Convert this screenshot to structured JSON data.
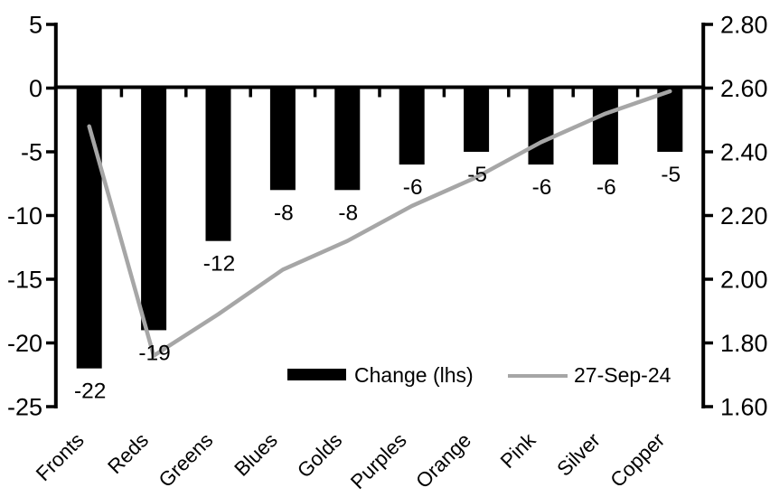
{
  "chart_data": {
    "type": "bar+line dual-axis combo",
    "categories": [
      "Fronts",
      "Reds",
      "Greens",
      "Blues",
      "Golds",
      "Purples",
      "Orange",
      "Pink",
      "Silver",
      "Copper"
    ],
    "series": [
      {
        "name": "Change (lhs)",
        "type": "bar",
        "axis": "left",
        "color": "#000000",
        "values": [
          -22,
          -19,
          -12,
          -8,
          -8,
          -6,
          -5,
          -6,
          -6,
          -5
        ],
        "data_labels": [
          "-22",
          "-19",
          "-12",
          "-8",
          "-8",
          "-6",
          "-5",
          "-6",
          "-6",
          "-5"
        ]
      },
      {
        "name": "27-Sep-24",
        "type": "line",
        "axis": "right",
        "color": "#a6a6a6",
        "values": [
          2.48,
          1.76,
          1.89,
          2.03,
          2.12,
          2.23,
          2.32,
          2.43,
          2.52,
          2.59
        ]
      }
    ],
    "left_axis": {
      "min": -25,
      "max": 5,
      "tick_step": 5,
      "ticks": [
        5,
        0,
        -5,
        -10,
        -15,
        -20,
        -25
      ],
      "tick_labels": [
        "5",
        "0",
        "-5",
        "-10",
        "-15",
        "-20",
        "-25"
      ]
    },
    "right_axis": {
      "min": 1.6,
      "max": 2.8,
      "tick_step": 0.2,
      "ticks": [
        2.8,
        2.6,
        2.4,
        2.2,
        2.0,
        1.8,
        1.6
      ],
      "tick_labels": [
        "2.80",
        "2.60",
        "2.40",
        "2.20",
        "2.00",
        "1.80",
        "1.60"
      ]
    },
    "legend": {
      "position": "bottom-center",
      "entries": [
        {
          "label": "Change (lhs)",
          "swatch": "bar",
          "color": "#000000"
        },
        {
          "label": "27-Sep-24",
          "swatch": "line",
          "color": "#a6a6a6"
        }
      ]
    },
    "grid": false,
    "background": "#ffffff",
    "axis_color": "#000000",
    "title": "",
    "xlabel": "",
    "ylabel": ""
  }
}
